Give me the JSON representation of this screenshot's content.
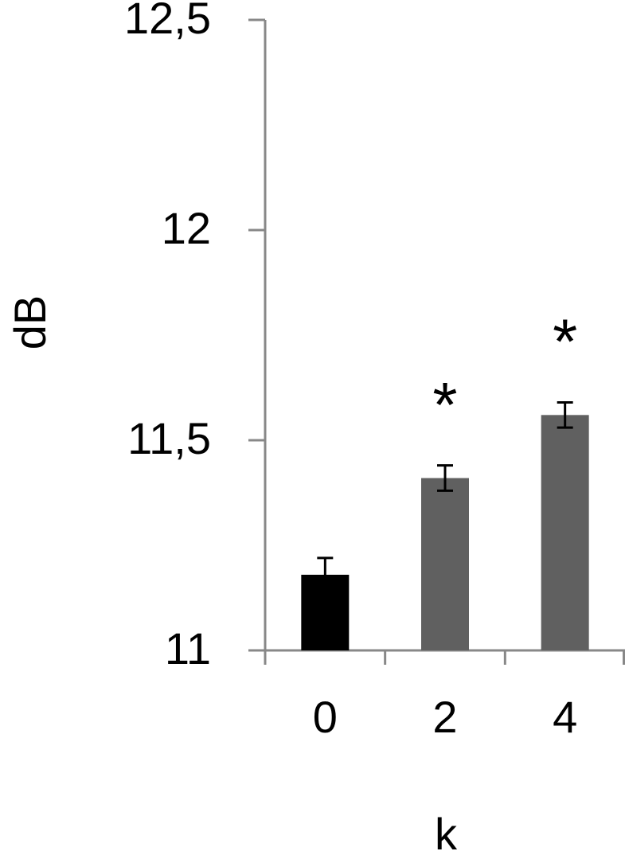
{
  "chart_data": {
    "type": "bar",
    "x_label": "k",
    "y_label": "dB",
    "categories": [
      "0",
      "2",
      "4"
    ],
    "values": [
      11.18,
      11.41,
      11.56
    ],
    "errors": [
      0.04,
      0.03,
      0.03
    ],
    "colors": [
      "#000000",
      "#606060",
      "#606060"
    ],
    "annotations": [
      null,
      "*",
      "*"
    ],
    "ylim": [
      11,
      12.5
    ],
    "yticks": [
      11,
      {
        "value": 11.5,
        "label": "11,5"
      },
      12,
      {
        "value": 12.5,
        "label": "12,5"
      }
    ]
  }
}
